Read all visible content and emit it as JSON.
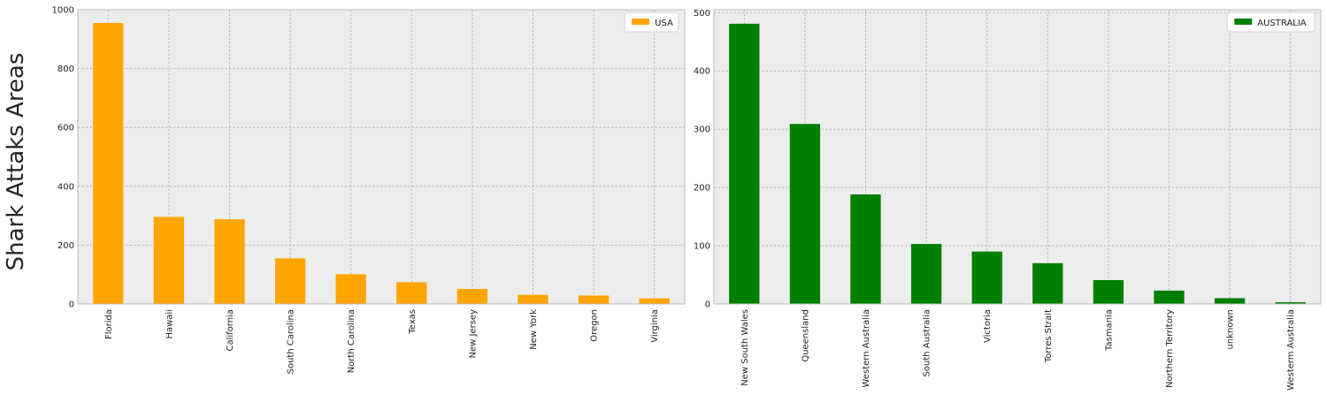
{
  "figure": {
    "ylabel": "Shark Attaks Areas"
  },
  "chart_data": [
    {
      "type": "bar",
      "categories": [
        "Florida",
        "Hawaii",
        "California",
        "South Carolina",
        "North Carolina",
        "Texas",
        "New Jersey",
        "New York",
        "Oregon",
        "Virginia"
      ],
      "series": [
        {
          "name": "USA",
          "values": [
            955,
            296,
            288,
            155,
            101,
            74,
            51,
            31,
            29,
            19
          ]
        }
      ],
      "ylim": [
        0,
        1000
      ],
      "yticks": [
        0,
        200,
        400,
        600,
        800,
        1000
      ],
      "grid": true,
      "legend": "top-right",
      "colors": {
        "bar": "#FFA500",
        "background": "#EDEDED"
      }
    },
    {
      "type": "bar",
      "categories": [
        "New South Wales",
        "Queensland",
        "Western Australia",
        "South Australia",
        "Victoria",
        "Torres Strait",
        "Tasmania",
        "Northern Territory",
        "unknown",
        "Westerm Australia"
      ],
      "series": [
        {
          "name": "AUSTRALIA",
          "values": [
            481,
            309,
            188,
            103,
            90,
            70,
            41,
            23,
            10,
            3
          ]
        }
      ],
      "ylim": [
        0,
        505
      ],
      "yticks": [
        0,
        100,
        200,
        300,
        400,
        500
      ],
      "grid": true,
      "legend": "top-right",
      "colors": {
        "bar": "#008000",
        "background": "#EDEDED"
      }
    }
  ]
}
